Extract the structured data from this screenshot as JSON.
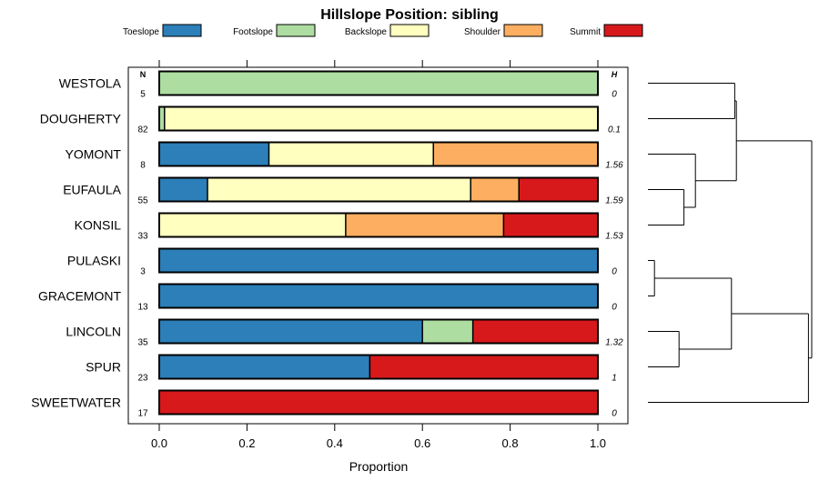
{
  "chart_data": {
    "type": "bar",
    "orientation": "horizontal",
    "stacked": true,
    "title": "Hillslope Position: sibling",
    "xlabel": "Proportion",
    "ylabel": "",
    "xlim": [
      0,
      1
    ],
    "x_ticks": [
      "0.0",
      "0.2",
      "0.4",
      "0.6",
      "0.8",
      "1.0"
    ],
    "n_header": "N",
    "h_header": "H",
    "legend": {
      "position": "top",
      "entries": [
        {
          "name": "Toeslope",
          "color": "#2c7fb8"
        },
        {
          "name": "Footslope",
          "color": "#addda0"
        },
        {
          "name": "Backslope",
          "color": "#ffffbf"
        },
        {
          "name": "Shoulder",
          "color": "#fdae61"
        },
        {
          "name": "Summit",
          "color": "#d7191c"
        }
      ]
    },
    "categories": [
      "WESTOLA",
      "DOUGHERTY",
      "YOMONT",
      "EUFAULA",
      "KONSIL",
      "PULASKI",
      "GRACEMONT",
      "LINCOLN",
      "SPUR",
      "SWEETWATER"
    ],
    "n": [
      "5",
      "82",
      "8",
      "55",
      "33",
      "3",
      "13",
      "35",
      "23",
      "17"
    ],
    "h": [
      "0",
      "0.1",
      "1.56",
      "1.59",
      "1.53",
      "0",
      "0",
      "1.32",
      "1",
      "0"
    ],
    "series": [
      {
        "name": "Toeslope",
        "values": [
          0,
          0,
          0.25,
          0.11,
          0,
          1,
          1,
          0.6,
          0.48,
          0
        ]
      },
      {
        "name": "Footslope",
        "values": [
          1,
          0.012,
          0,
          0,
          0,
          0,
          0,
          0.115,
          0,
          0
        ]
      },
      {
        "name": "Backslope",
        "values": [
          0,
          0.988,
          0.375,
          0.6,
          0.425,
          0,
          0,
          0,
          0,
          0
        ]
      },
      {
        "name": "Shoulder",
        "values": [
          0,
          0,
          0.375,
          0.11,
          0.36,
          0,
          0,
          0,
          0,
          0
        ]
      },
      {
        "name": "Summit",
        "values": [
          0,
          0,
          0,
          0.18,
          0.215,
          0,
          0,
          0.285,
          0.52,
          1
        ]
      }
    ],
    "dendrogram": {
      "leaves": [
        "WESTOLA",
        "DOUGHERTY",
        "YOMONT",
        "EUFAULA",
        "KONSIL",
        "PULASKI",
        "GRACEMONT",
        "LINCOLN",
        "SPUR",
        "SWEETWATER"
      ],
      "merges": [
        {
          "left": "EUFAULA",
          "right": "KONSIL",
          "height": 0.22
        },
        {
          "left": "PULASKI",
          "right": "GRACEMONT",
          "height": 0.04
        },
        {
          "left": "LINCOLN",
          "right": "SPUR",
          "height": 0.19
        },
        {
          "left": "YOMONT",
          "right": "EUFAULA+KONSIL",
          "height": 0.29
        },
        {
          "left": "PULASKI+GRACEMONT",
          "right": "LINCOLN+SPUR",
          "height": 0.51
        },
        {
          "left": "WESTOLA",
          "right": "DOUGHERTY",
          "height": 0.53
        },
        {
          "left": "WESTOLA+DOUGHERTY",
          "right": "YOMONT+EUFAULA+KONSIL",
          "height": 0.54
        },
        {
          "left": "PULASKI+GRACEMONT+LINCOLN+SPUR",
          "right": "SWEETWATER",
          "height": 0.98
        },
        {
          "left": "WESTOLA+DOUGHERTY+YOMONT+EUFAULA+KONSIL",
          "right": "PULASKI+GRACEMONT+LINCOLN+SPUR+SWEETWATER",
          "height": 1.0
        }
      ]
    }
  }
}
